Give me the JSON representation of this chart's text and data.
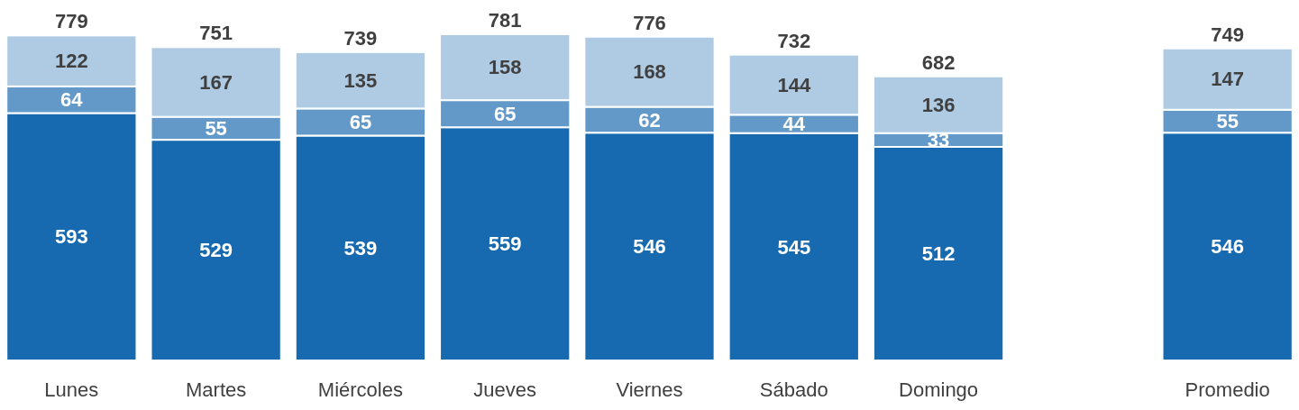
{
  "chart_data": {
    "type": "bar",
    "stacked": true,
    "data_labels": true,
    "categories": [
      "Lunes",
      "Martes",
      "Miércoles",
      "Jueves",
      "Viernes",
      "Sábado",
      "Domingo",
      null,
      "Promedio"
    ],
    "series": [
      {
        "color": "#1769b0",
        "values": [
          593,
          529,
          539,
          559,
          546,
          545,
          512,
          null,
          546
        ]
      },
      {
        "color": "#6399c9",
        "values": [
          64,
          55,
          65,
          65,
          62,
          44,
          33,
          null,
          55
        ]
      },
      {
        "color": "#aecbe3",
        "values": [
          122,
          167,
          135,
          158,
          168,
          144,
          136,
          null,
          147
        ]
      }
    ],
    "totals": [
      "779",
      "751",
      "739",
      "781",
      "776",
      "732",
      "682",
      null,
      "749"
    ]
  }
}
